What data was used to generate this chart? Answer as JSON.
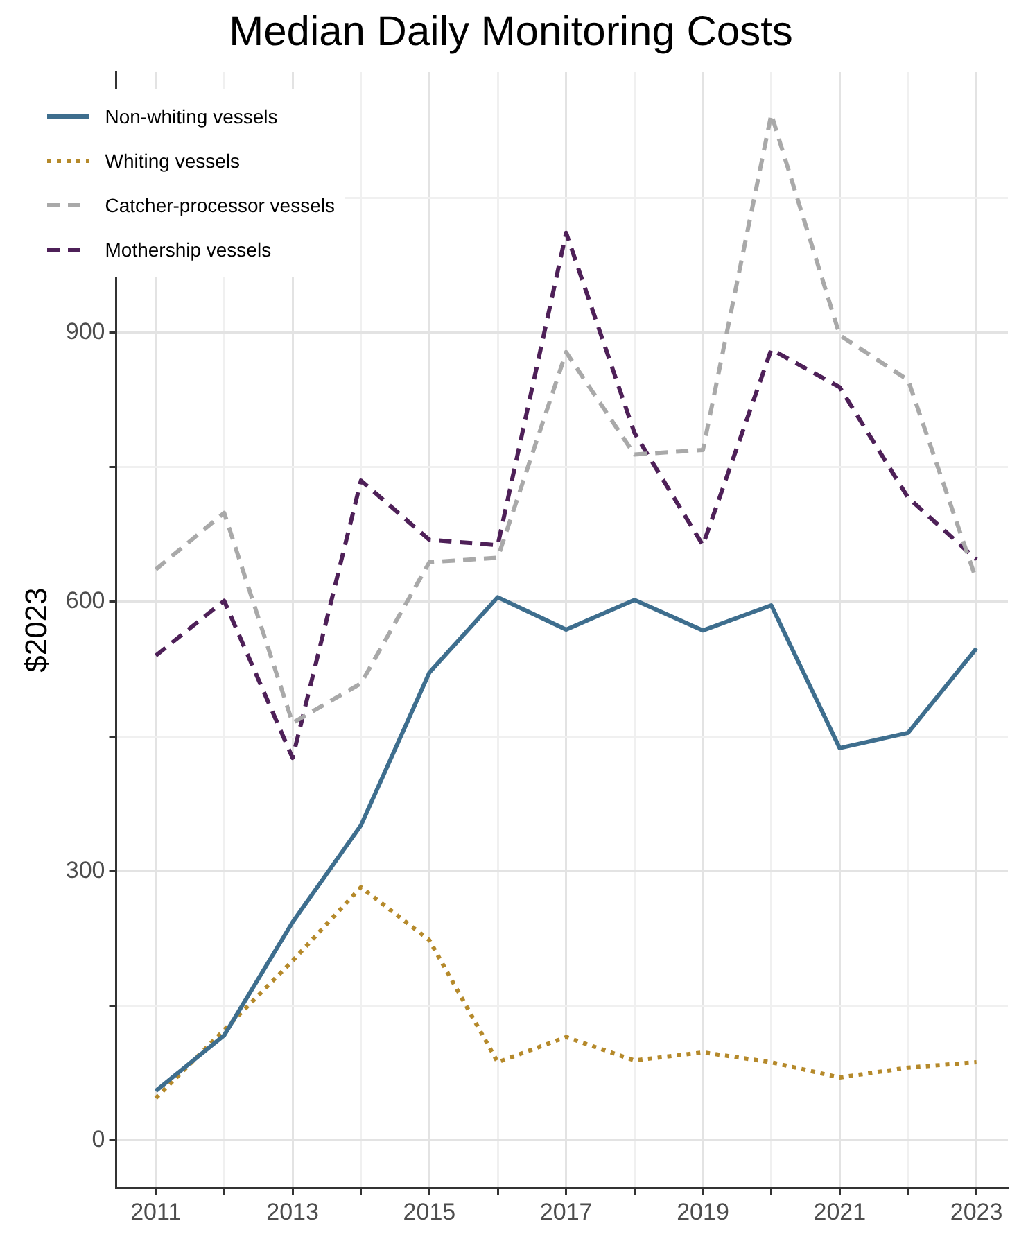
{
  "chart_data": {
    "type": "line",
    "title": "Median Daily Monitoring Costs",
    "ylabel": "$2023",
    "x": [
      2011,
      2012,
      2013,
      2014,
      2015,
      2016,
      2017,
      2018,
      2019,
      2020,
      2021,
      2022,
      2023
    ],
    "series": [
      {
        "name": "Non-whiting vessels",
        "color": "#3e6e8e",
        "line_style": "solid",
        "values": [
          55,
          117,
          243,
          351,
          521,
          605,
          569,
          602,
          568,
          596,
          437,
          454,
          548
        ]
      },
      {
        "name": "Whiting vessels",
        "color": "#b5892a",
        "line_style": "dotted",
        "values": [
          47,
          123,
          200,
          282,
          223,
          87,
          115,
          89,
          98,
          87,
          70,
          81,
          87
        ]
      },
      {
        "name": "Catcher-processor vessels",
        "color": "#a9a9a9",
        "line_style": "dashed",
        "values": [
          636,
          699,
          465,
          509,
          644,
          649,
          878,
          764,
          769,
          1143,
          897,
          847,
          624
        ]
      },
      {
        "name": "Mothership vessels",
        "color": "#4e2058",
        "line_style": "dashed",
        "values": [
          540,
          601,
          426,
          735,
          669,
          663,
          1011,
          788,
          663,
          881,
          839,
          716,
          647
        ]
      }
    ],
    "xlim": [
      2010.42,
      2023.46
    ],
    "ylim": [
      -53,
      1190
    ],
    "xticks": [
      2011,
      {
        "value": 2012,
        "label": null
      },
      2013,
      {
        "value": 2014,
        "label": null
      },
      2015,
      {
        "value": 2016,
        "label": null
      },
      2017,
      {
        "value": 2018,
        "label": null
      },
      2019,
      {
        "value": 2020,
        "label": null
      },
      2021,
      {
        "value": 2022,
        "label": null
      },
      2023
    ],
    "yticks": [
      0,
      {
        "value": 150,
        "label": null
      },
      300,
      {
        "value": 450,
        "label": null
      },
      600,
      {
        "value": 750,
        "label": null
      },
      900,
      {
        "value": 1050,
        "label": null
      }
    ],
    "grid": true,
    "legend": "top left",
    "marker": "none"
  }
}
